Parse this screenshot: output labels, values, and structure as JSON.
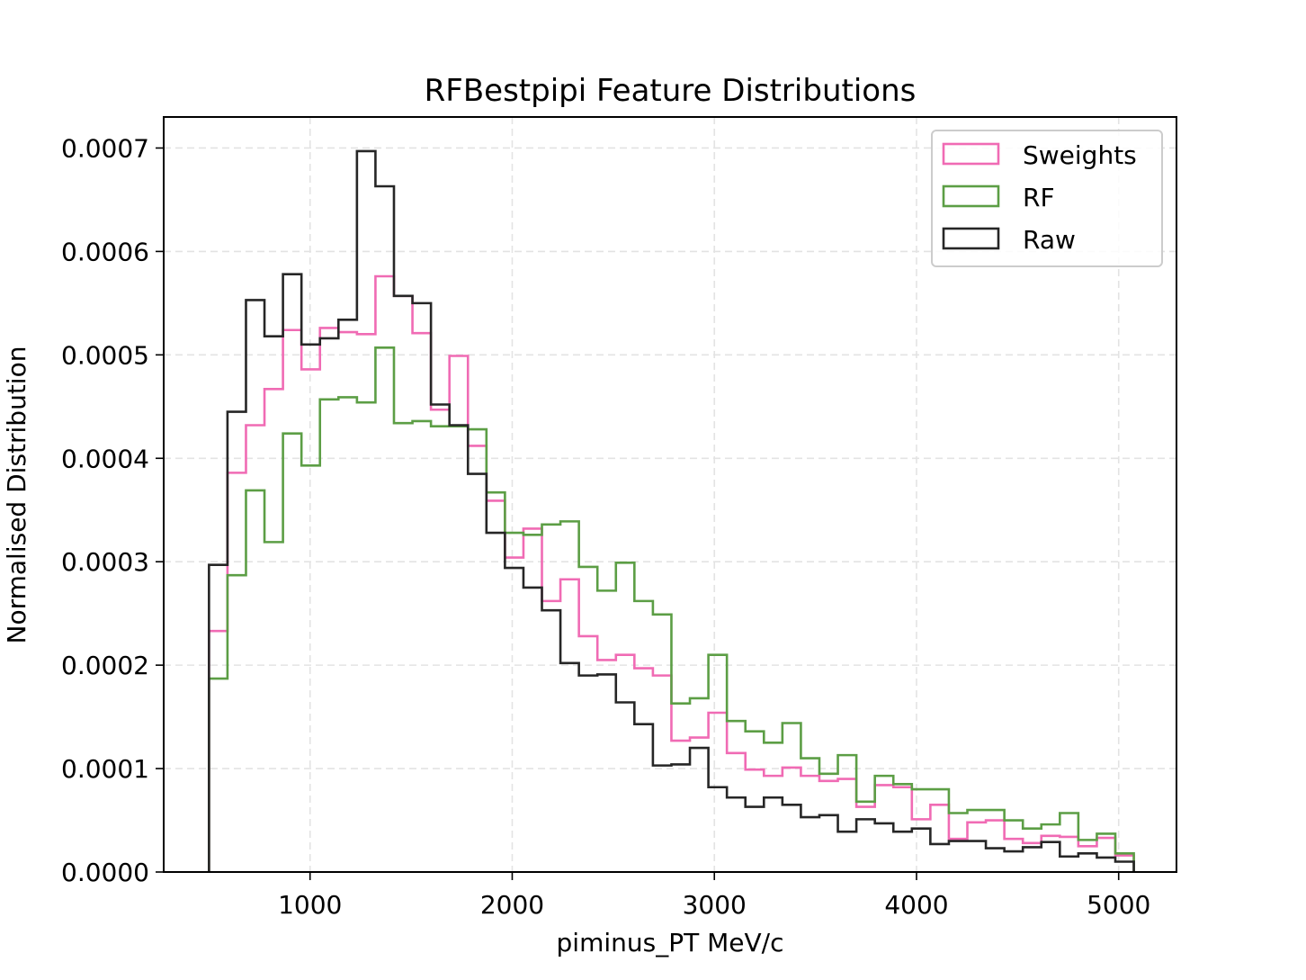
{
  "chart_data": {
    "type": "histogram",
    "title": "RFBestpipi Feature Distributions",
    "xlabel": "piminus_PT MeV/c",
    "ylabel": "Normalised Distribution",
    "xlim": [
      276,
      5286
    ],
    "ylim": [
      0,
      0.00073
    ],
    "x_ticks": [
      1000,
      2000,
      3000,
      4000,
      5000
    ],
    "x_tick_labels": [
      "1000",
      "2000",
      "3000",
      "4000",
      "5000"
    ],
    "y_ticks": [
      0,
      0.0001,
      0.0002,
      0.0003,
      0.0004,
      0.0005,
      0.0006,
      0.0007
    ],
    "y_tick_labels": [
      "0.0000",
      "0.0001",
      "0.0002",
      "0.0003",
      "0.0004",
      "0.0005",
      "0.0006",
      "0.0007"
    ],
    "grid": true,
    "legend_position": "top-right",
    "bin_start": 500,
    "bin_width": 91.5,
    "bin_count": 50,
    "series": [
      {
        "name": "Sweights",
        "color": "#f06bb4",
        "values": [
          0.000233,
          0.000386,
          0.000432,
          0.000467,
          0.000524,
          0.000486,
          0.000526,
          0.000522,
          0.00052,
          0.000576,
          0.000557,
          0.000521,
          0.000447,
          0.000499,
          0.000412,
          0.000359,
          0.000304,
          0.000332,
          0.000262,
          0.000283,
          0.000228,
          0.000205,
          0.00021,
          0.000197,
          0.00019,
          0.000127,
          0.00013,
          0.000154,
          0.000115,
          9.9e-05,
          9.3e-05,
          0.000101,
          9.3e-05,
          8.8e-05,
          9e-05,
          6.3e-05,
          8.4e-05,
          8.2e-05,
          5.1e-05,
          6.5e-05,
          3.2e-05,
          4.8e-05,
          5e-05,
          3.2e-05,
          2.8e-05,
          3.5e-05,
          3.4e-05,
          2.5e-05,
          3.3e-05,
          1.6e-05
        ]
      },
      {
        "name": "RF",
        "color": "#5c9e45",
        "values": [
          0.000187,
          0.000287,
          0.000369,
          0.000319,
          0.000424,
          0.000393,
          0.000457,
          0.000459,
          0.000454,
          0.000507,
          0.000434,
          0.000436,
          0.000431,
          0.000431,
          0.000428,
          0.000367,
          0.000328,
          0.000326,
          0.000336,
          0.000339,
          0.000295,
          0.000272,
          0.000299,
          0.000262,
          0.000249,
          0.000163,
          0.000168,
          0.00021,
          0.000146,
          0.000136,
          0.000125,
          0.000144,
          0.00011,
          9.5e-05,
          0.000113,
          6.8e-05,
          9.3e-05,
          8.5e-05,
          8e-05,
          8e-05,
          5.7e-05,
          6e-05,
          6e-05,
          5e-05,
          4.2e-05,
          4.6e-05,
          5.7e-05,
          3.1e-05,
          3.7e-05,
          1.8e-05
        ]
      },
      {
        "name": "Raw",
        "color": "#262626",
        "values": [
          0.000297,
          0.000445,
          0.000553,
          0.000518,
          0.000578,
          0.00051,
          0.000516,
          0.000534,
          0.000697,
          0.000663,
          0.000557,
          0.00055,
          0.000452,
          0.000432,
          0.000385,
          0.000328,
          0.000294,
          0.000275,
          0.000253,
          0.000202,
          0.00019,
          0.000191,
          0.000164,
          0.000143,
          0.000103,
          0.000104,
          0.00012,
          8.2e-05,
          7.2e-05,
          6.3e-05,
          7.2e-05,
          6.5e-05,
          5.3e-05,
          5.5e-05,
          3.9e-05,
          5.1e-05,
          4.7e-05,
          3.9e-05,
          4.2e-05,
          2.7e-05,
          3e-05,
          3e-05,
          2.3e-05,
          2e-05,
          2.4e-05,
          2.9e-05,
          1.5e-05,
          1.8e-05,
          1.4e-05,
          1e-05
        ]
      }
    ]
  }
}
